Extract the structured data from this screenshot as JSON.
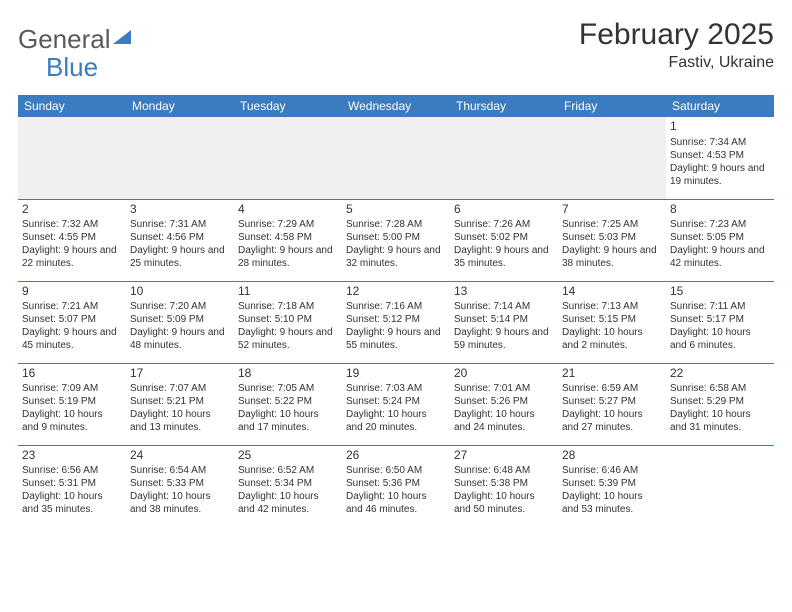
{
  "brand": {
    "word1": "General",
    "word2": "Blue"
  },
  "title": "February 2025",
  "location": "Fastiv, Ukraine",
  "colors": {
    "header_bg": "#3b7bbf",
    "header_text": "#ffffff",
    "cell_border": "#3b7bbf",
    "body_text": "#333333",
    "empty_bg": "#f0f0f0",
    "page_bg": "#ffffff"
  },
  "day_headers": [
    "Sunday",
    "Monday",
    "Tuesday",
    "Wednesday",
    "Thursday",
    "Friday",
    "Saturday"
  ],
  "weeks": [
    [
      null,
      null,
      null,
      null,
      null,
      null,
      {
        "n": "1",
        "sr": "7:34 AM",
        "ss": "4:53 PM",
        "dl": "9 hours and 19 minutes."
      }
    ],
    [
      {
        "n": "2",
        "sr": "7:32 AM",
        "ss": "4:55 PM",
        "dl": "9 hours and 22 minutes."
      },
      {
        "n": "3",
        "sr": "7:31 AM",
        "ss": "4:56 PM",
        "dl": "9 hours and 25 minutes."
      },
      {
        "n": "4",
        "sr": "7:29 AM",
        "ss": "4:58 PM",
        "dl": "9 hours and 28 minutes."
      },
      {
        "n": "5",
        "sr": "7:28 AM",
        "ss": "5:00 PM",
        "dl": "9 hours and 32 minutes."
      },
      {
        "n": "6",
        "sr": "7:26 AM",
        "ss": "5:02 PM",
        "dl": "9 hours and 35 minutes."
      },
      {
        "n": "7",
        "sr": "7:25 AM",
        "ss": "5:03 PM",
        "dl": "9 hours and 38 minutes."
      },
      {
        "n": "8",
        "sr": "7:23 AM",
        "ss": "5:05 PM",
        "dl": "9 hours and 42 minutes."
      }
    ],
    [
      {
        "n": "9",
        "sr": "7:21 AM",
        "ss": "5:07 PM",
        "dl": "9 hours and 45 minutes."
      },
      {
        "n": "10",
        "sr": "7:20 AM",
        "ss": "5:09 PM",
        "dl": "9 hours and 48 minutes."
      },
      {
        "n": "11",
        "sr": "7:18 AM",
        "ss": "5:10 PM",
        "dl": "9 hours and 52 minutes."
      },
      {
        "n": "12",
        "sr": "7:16 AM",
        "ss": "5:12 PM",
        "dl": "9 hours and 55 minutes."
      },
      {
        "n": "13",
        "sr": "7:14 AM",
        "ss": "5:14 PM",
        "dl": "9 hours and 59 minutes."
      },
      {
        "n": "14",
        "sr": "7:13 AM",
        "ss": "5:15 PM",
        "dl": "10 hours and 2 minutes."
      },
      {
        "n": "15",
        "sr": "7:11 AM",
        "ss": "5:17 PM",
        "dl": "10 hours and 6 minutes."
      }
    ],
    [
      {
        "n": "16",
        "sr": "7:09 AM",
        "ss": "5:19 PM",
        "dl": "10 hours and 9 minutes."
      },
      {
        "n": "17",
        "sr": "7:07 AM",
        "ss": "5:21 PM",
        "dl": "10 hours and 13 minutes."
      },
      {
        "n": "18",
        "sr": "7:05 AM",
        "ss": "5:22 PM",
        "dl": "10 hours and 17 minutes."
      },
      {
        "n": "19",
        "sr": "7:03 AM",
        "ss": "5:24 PM",
        "dl": "10 hours and 20 minutes."
      },
      {
        "n": "20",
        "sr": "7:01 AM",
        "ss": "5:26 PM",
        "dl": "10 hours and 24 minutes."
      },
      {
        "n": "21",
        "sr": "6:59 AM",
        "ss": "5:27 PM",
        "dl": "10 hours and 27 minutes."
      },
      {
        "n": "22",
        "sr": "6:58 AM",
        "ss": "5:29 PM",
        "dl": "10 hours and 31 minutes."
      }
    ],
    [
      {
        "n": "23",
        "sr": "6:56 AM",
        "ss": "5:31 PM",
        "dl": "10 hours and 35 minutes."
      },
      {
        "n": "24",
        "sr": "6:54 AM",
        "ss": "5:33 PM",
        "dl": "10 hours and 38 minutes."
      },
      {
        "n": "25",
        "sr": "6:52 AM",
        "ss": "5:34 PM",
        "dl": "10 hours and 42 minutes."
      },
      {
        "n": "26",
        "sr": "6:50 AM",
        "ss": "5:36 PM",
        "dl": "10 hours and 46 minutes."
      },
      {
        "n": "27",
        "sr": "6:48 AM",
        "ss": "5:38 PM",
        "dl": "10 hours and 50 minutes."
      },
      {
        "n": "28",
        "sr": "6:46 AM",
        "ss": "5:39 PM",
        "dl": "10 hours and 53 minutes."
      },
      null
    ]
  ],
  "labels": {
    "sunrise": "Sunrise:",
    "sunset": "Sunset:",
    "daylight": "Daylight:"
  }
}
